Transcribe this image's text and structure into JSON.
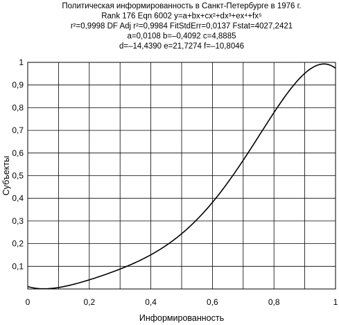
{
  "chart_data": {
    "type": "line",
    "title_lines": [
      "Политическая информированность в Санкт-Петербурге в 1976 г.",
      "Rank 176  Eqn 6002  y=a+bx+cx²+dx³+ex⁴+fx⁵",
      "r²=0,9998  DF Adj r²=0,9984  FitStdErr=0,0137  Fstat=4027,2421",
      "a=0,0108  b=–0,4092  c=4,8885",
      "d=–14,4390  e=21,7274  f=–10,8046"
    ],
    "xlabel": "Информированность",
    "ylabel": "Субъекты",
    "xlim": [
      0,
      1
    ],
    "ylim": [
      0,
      1
    ],
    "grid": true,
    "x_ticks": [
      "0",
      "0,2",
      "0,4",
      "0,6",
      "0,8",
      "1"
    ],
    "y_ticks": [
      "0,1",
      "0,2",
      "0,3",
      "0,4",
      "0,5",
      "0,6",
      "0,7",
      "0,8",
      "0,9",
      "1"
    ],
    "coefficients": {
      "a": 0.0108,
      "b": -0.4092,
      "c": 4.8885,
      "d": -14.439,
      "e": 21.7274,
      "f": -10.8046
    },
    "series": [
      {
        "x": [
          0,
          0.05,
          0.1,
          0.15,
          0.2,
          0.25,
          0.3,
          0.35,
          0.4,
          0.45,
          0.5,
          0.55,
          0.6,
          0.65,
          0.7,
          0.75,
          0.8,
          0.85,
          0.9,
          0.95,
          1.0
        ],
        "y": [
          0.011,
          0.004,
          0.005,
          0.02,
          0.04,
          0.06,
          0.085,
          0.11,
          0.145,
          0.185,
          0.24,
          0.305,
          0.39,
          0.475,
          0.57,
          0.67,
          0.79,
          0.895,
          0.965,
          0.99,
          0.96
        ],
        "color": "#000000"
      }
    ]
  }
}
